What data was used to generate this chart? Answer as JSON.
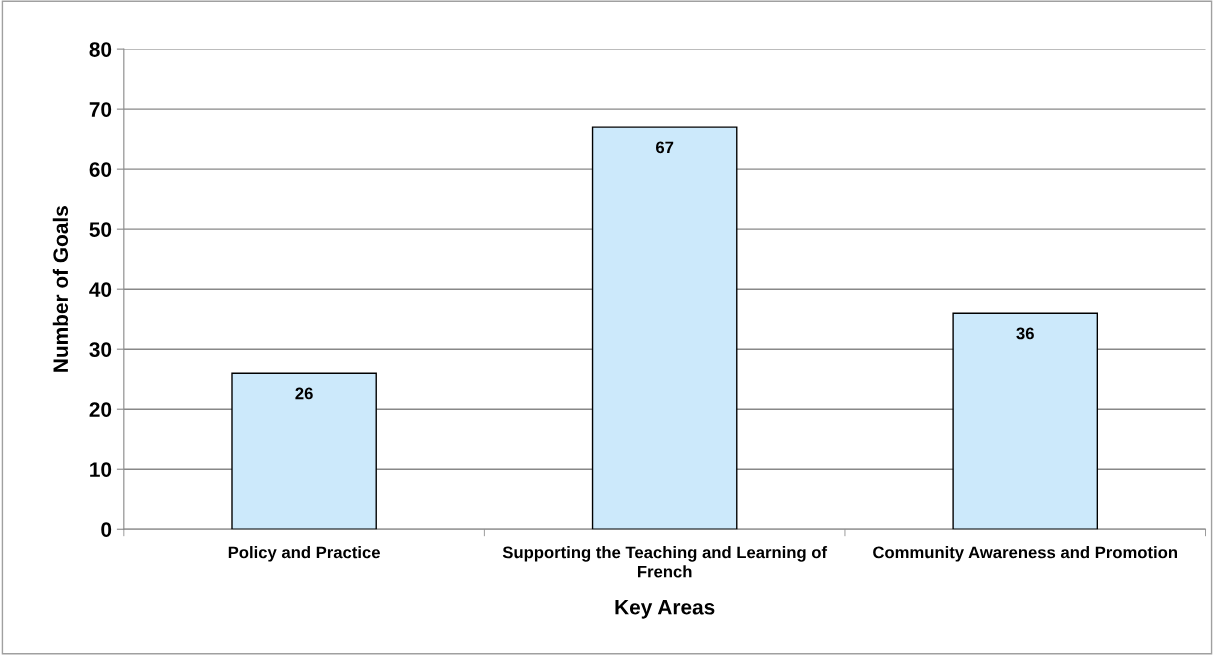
{
  "chart_data": {
    "type": "bar",
    "xlabel": "Key Areas",
    "ylabel": "Number of Goals",
    "categories": [
      "Policy and Practice",
      "Supporting the Teaching and Learning of French",
      "Community Awareness and Promotion"
    ],
    "values": [
      26,
      67,
      36
    ],
    "color": "#cce9fb",
    "ylim": [
      0,
      80
    ],
    "yticks": [
      0,
      10,
      20,
      30,
      40,
      50,
      60,
      70,
      80
    ],
    "grid": "y",
    "data_labels": true
  }
}
